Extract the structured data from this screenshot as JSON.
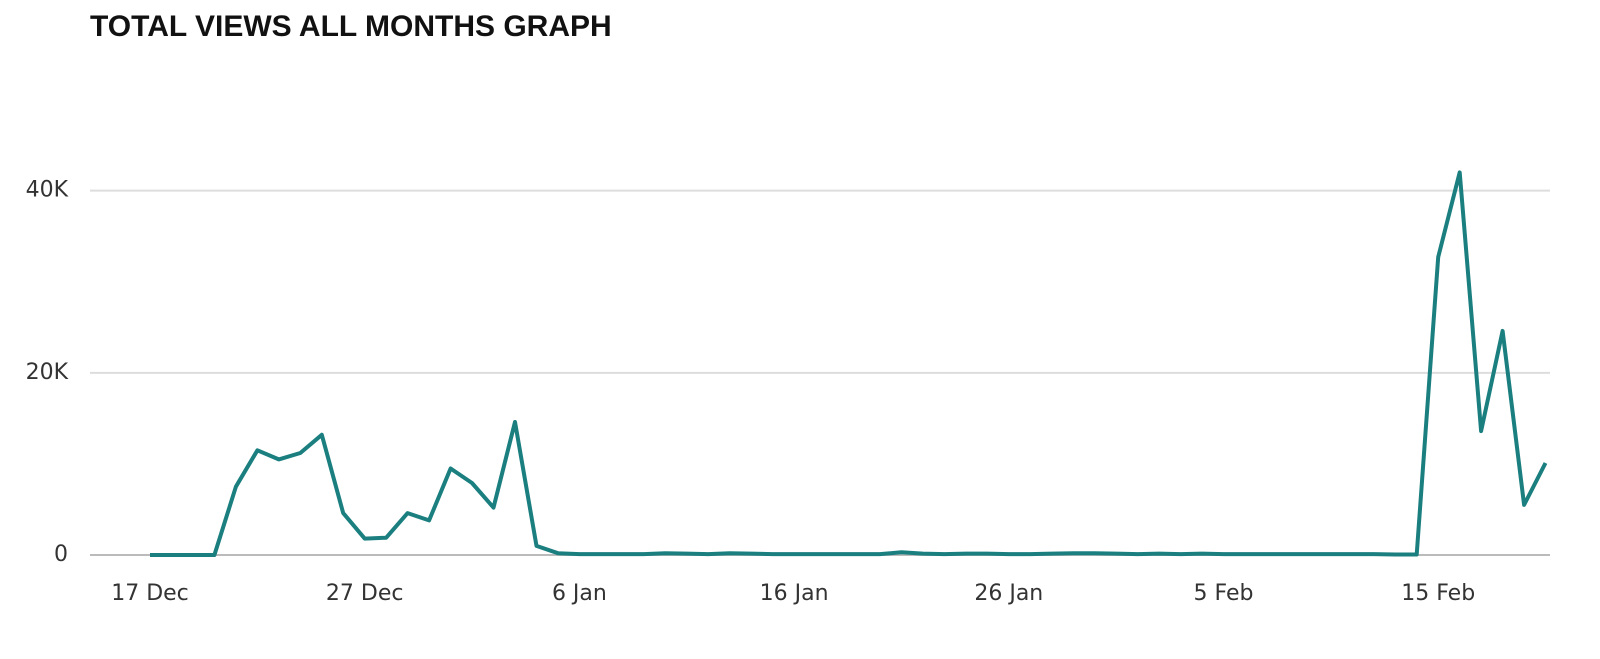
{
  "chart_data": {
    "type": "line",
    "title": "TOTAL VIEWS ALL MONTHS GRAPH",
    "categories": [
      "17 Dec",
      null,
      null,
      null,
      null,
      null,
      null,
      null,
      null,
      null,
      "27 Dec",
      null,
      null,
      null,
      null,
      null,
      null,
      null,
      null,
      null,
      "6 Jan",
      null,
      null,
      null,
      null,
      null,
      null,
      null,
      null,
      null,
      "16 Jan",
      null,
      null,
      null,
      null,
      null,
      null,
      null,
      null,
      null,
      "26 Jan",
      null,
      null,
      null,
      null,
      null,
      null,
      null,
      null,
      null,
      "5 Feb",
      null,
      null,
      null,
      null,
      null,
      null,
      null,
      null,
      null,
      "15 Feb",
      null,
      null,
      null,
      null,
      null
    ],
    "series": [
      {
        "name": "Views",
        "color": "#1b7f80",
        "values": [
          0,
          0,
          0,
          0,
          7500,
          11500,
          10500,
          11200,
          13200,
          4600,
          1800,
          1900,
          4600,
          3800,
          9500,
          7900,
          5200,
          14600,
          1000,
          200,
          100,
          100,
          100,
          100,
          200,
          150,
          100,
          200,
          150,
          100,
          100,
          100,
          100,
          100,
          100,
          300,
          150,
          100,
          150,
          150,
          100,
          100,
          150,
          200,
          200,
          150,
          100,
          150,
          100,
          150,
          100,
          100,
          100,
          100,
          100,
          100,
          100,
          100,
          50,
          50,
          32700,
          42000,
          13600,
          24600,
          5500,
          10100
        ]
      }
    ],
    "ylim": [
      0,
      46000
    ],
    "yticks": [
      0,
      {
        "value": 20000,
        "label": "20K"
      },
      {
        "value": 40000,
        "label": "40K"
      }
    ],
    "grid": true
  }
}
